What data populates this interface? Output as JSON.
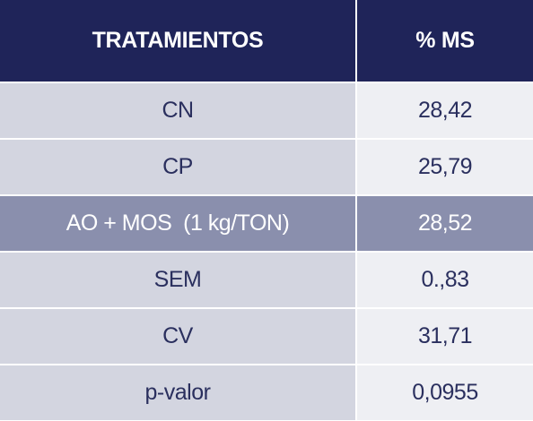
{
  "header": {
    "col1": "TRATAMIENTOS",
    "col2": "% MS"
  },
  "rows": [
    {
      "treatment": "CN",
      "ms": "28,42"
    },
    {
      "treatment": "CP",
      "ms": "25,79"
    },
    {
      "treatment": "AO + MOS  (1 kg/TON)",
      "ms": "28,52"
    },
    {
      "treatment": "SEM",
      "ms": "0.,83"
    },
    {
      "treatment": "CV",
      "ms": "31,71"
    },
    {
      "treatment": "p-valor",
      "ms": "0,0955"
    }
  ],
  "colors": {
    "header_bg": "#1f2459",
    "row_label_bg": "#d3d5e0",
    "row_value_bg": "#eeeff3",
    "highlight_bg": "#8a8fad"
  }
}
